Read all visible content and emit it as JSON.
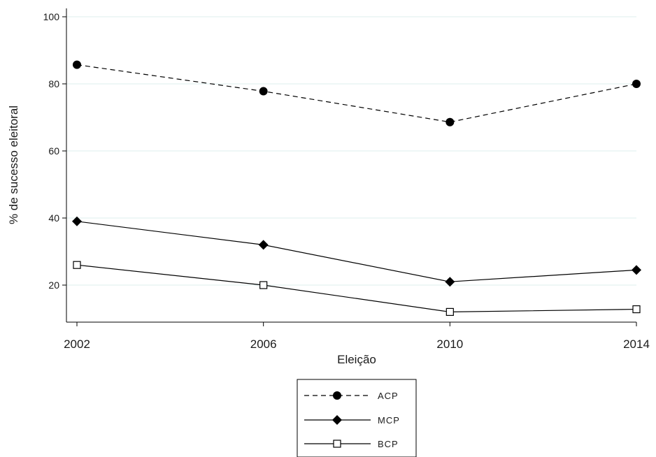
{
  "chart_data": {
    "type": "line",
    "title": "",
    "xlabel": "Eleição",
    "ylabel": "% de sucesso eleitoral",
    "categories": [
      "2002",
      "2006",
      "2010",
      "2014"
    ],
    "ylim": [
      10,
      100
    ],
    "yticks": [
      20,
      40,
      60,
      80,
      100
    ],
    "grid": "horizontal",
    "legend_position": "bottom",
    "series": [
      {
        "name": "ACP",
        "values": [
          85.7,
          77.8,
          68.6,
          80.0
        ],
        "marker": "filled-circle",
        "line": "dashed",
        "color": "#000000"
      },
      {
        "name": "MCP",
        "values": [
          39.0,
          32.0,
          21.0,
          24.5
        ],
        "marker": "filled-diamond",
        "line": "solid",
        "color": "#000000"
      },
      {
        "name": "BCP",
        "values": [
          26.0,
          20.0,
          12.0,
          12.8
        ],
        "marker": "hollow-square",
        "line": "solid",
        "color": "#000000"
      }
    ]
  }
}
